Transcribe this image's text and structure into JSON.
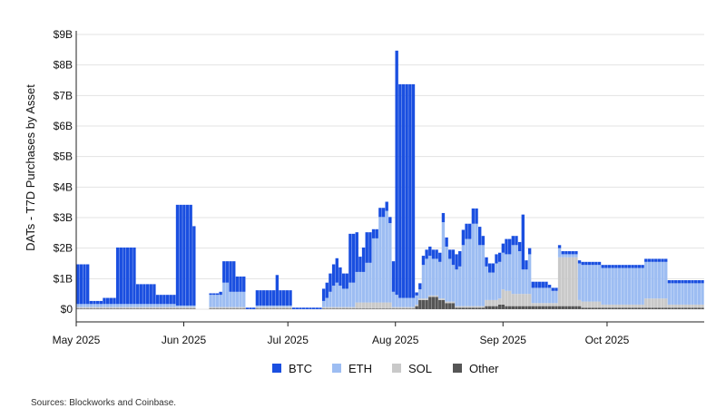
{
  "chart_data": {
    "type": "bar",
    "stacked": true,
    "ylabel": "DATs - T7D Purchases by Asset",
    "y_ticks": [
      "$0",
      "$1B",
      "$2B",
      "$3B",
      "$4B",
      "$5B",
      "$6B",
      "$7B",
      "$8B",
      "$9B"
    ],
    "ylim": [
      0,
      9
    ],
    "y_unit": "billion USD",
    "x_ticks": [
      "May 2025",
      "Jun 2025",
      "Jul 2025",
      "Aug 2025",
      "Sep 2025",
      "Oct 2025"
    ],
    "x_range": [
      "2025-05-01",
      "2025-10-29"
    ],
    "grid": true,
    "legend_position": "bottom",
    "colors": {
      "BTC": "#1a4fe0",
      "ETH": "#9dbdf2",
      "SOL": "#c9c9c9",
      "Other": "#555555"
    },
    "series": [
      {
        "name": "BTC",
        "values": [
          1.3,
          1.3,
          1.3,
          1.3,
          0.1,
          0.1,
          0.1,
          0.1,
          0.2,
          0.2,
          0.2,
          0.2,
          1.85,
          1.85,
          1.85,
          1.85,
          1.85,
          1.85,
          0.65,
          0.65,
          0.65,
          0.65,
          0.65,
          0.65,
          0.3,
          0.3,
          0.3,
          0.3,
          0.3,
          0.3,
          3.3,
          3.3,
          3.3,
          3.3,
          3.3,
          2.6,
          0.0,
          0.0,
          0.0,
          0.0,
          0.05,
          0.05,
          0.05,
          0.1,
          0.7,
          0.7,
          1.0,
          1.0,
          0.5,
          0.5,
          0.5,
          0.05,
          0.05,
          0.05,
          0.5,
          0.5,
          0.5,
          0.5,
          0.5,
          0.5,
          1.0,
          0.5,
          0.5,
          0.5,
          0.5,
          0.05,
          0.05,
          0.05,
          0.05,
          0.05,
          0.05,
          0.05,
          0.05,
          0.05,
          0.4,
          0.5,
          0.6,
          0.7,
          0.8,
          0.6,
          0.5,
          0.5,
          1.6,
          1.6,
          1.3,
          0.5,
          0.8,
          1.0,
          1.0,
          0.3,
          0.3,
          0.3,
          0.3,
          0.3,
          0.2,
          1.0,
          8.0,
          7.0,
          7.0,
          7.0,
          7.0,
          7.0,
          0.1,
          0.2,
          0.3,
          0.3,
          0.3,
          0.3,
          0.3,
          0.3,
          0.3,
          0.3,
          0.3,
          0.5,
          0.5,
          0.5,
          0.5,
          0.5,
          0.5,
          0.5,
          0.5,
          0.6,
          0.3,
          0.3,
          0.3,
          0.3,
          0.3,
          0.3,
          0.3,
          0.5,
          0.5,
          0.3,
          0.3,
          0.3,
          1.8,
          0.3,
          0.2,
          0.2,
          0.2,
          0.2,
          0.2,
          0.2,
          0.1,
          0.1,
          0.1,
          0.1,
          0.1,
          0.1,
          0.1,
          0.1,
          0.1,
          0.1,
          0.1,
          0.1,
          0.1,
          0.1,
          0.1,
          0.1,
          0.1,
          0.1,
          0.1,
          0.1,
          0.1,
          0.1,
          0.1,
          0.1,
          0.1,
          0.1,
          0.1,
          0.1,
          0.1,
          0.1,
          0.1,
          0.1,
          0.1,
          0.1,
          0.1,
          0.1,
          0.1,
          0.1,
          0.1,
          0.1,
          0.1,
          0.1,
          0.1,
          0.1,
          0.1,
          0.1,
          0.1
        ]
      },
      {
        "name": "ETH",
        "values": [
          0.1,
          0.1,
          0.1,
          0.1,
          0.1,
          0.1,
          0.1,
          0.1,
          0.1,
          0.1,
          0.1,
          0.1,
          0.1,
          0.1,
          0.1,
          0.1,
          0.1,
          0.1,
          0.1,
          0.1,
          0.1,
          0.1,
          0.1,
          0.1,
          0.1,
          0.1,
          0.1,
          0.1,
          0.1,
          0.1,
          0.05,
          0.05,
          0.05,
          0.05,
          0.05,
          0.05,
          0.0,
          0.0,
          0.0,
          0.0,
          0.4,
          0.4,
          0.4,
          0.4,
          0.8,
          0.8,
          0.5,
          0.5,
          0.5,
          0.5,
          0.5,
          0.0,
          0.0,
          0.0,
          0.05,
          0.05,
          0.05,
          0.05,
          0.05,
          0.05,
          0.05,
          0.05,
          0.05,
          0.05,
          0.05,
          0.0,
          0.0,
          0.0,
          0.0,
          0.0,
          0.0,
          0.0,
          0.0,
          0.0,
          0.2,
          0.3,
          0.5,
          0.7,
          0.8,
          0.7,
          0.6,
          0.6,
          0.8,
          0.8,
          1.0,
          1.0,
          1.0,
          1.3,
          1.3,
          2.1,
          2.1,
          2.8,
          2.8,
          3.0,
          2.6,
          0.5,
          0.4,
          0.3,
          0.3,
          0.3,
          0.3,
          0.3,
          0.3,
          0.3,
          1.1,
          1.3,
          1.3,
          1.2,
          1.2,
          1.2,
          2.5,
          1.8,
          1.4,
          1.2,
          1.2,
          1.3,
          2.0,
          2.2,
          2.2,
          2.7,
          2.7,
          2.0,
          2.0,
          1.1,
          0.9,
          0.9,
          1.2,
          1.2,
          1.2,
          1.2,
          1.2,
          1.6,
          1.6,
          1.4,
          0.8,
          0.8,
          1.3,
          0.5,
          0.5,
          0.5,
          0.5,
          0.5,
          0.5,
          0.4,
          0.4,
          0.3,
          0.1,
          0.1,
          0.1,
          0.1,
          0.1,
          1.2,
          1.2,
          1.2,
          1.2,
          1.2,
          1.2,
          1.2,
          1.2,
          1.2,
          1.2,
          1.2,
          1.2,
          1.2,
          1.2,
          1.2,
          1.2,
          1.2,
          1.2,
          1.2,
          1.2,
          1.2,
          1.2,
          1.2,
          1.2,
          1.2,
          1.2,
          1.2,
          0.7,
          0.7,
          0.7,
          0.7,
          0.7,
          0.7,
          0.7,
          0.7,
          0.7,
          0.7,
          0.7,
          0.7,
          0.7,
          0.7,
          0.7
        ]
      },
      {
        "name": "SOL",
        "values": [
          0.05,
          0.05,
          0.05,
          0.05,
          0.05,
          0.05,
          0.05,
          0.05,
          0.05,
          0.05,
          0.05,
          0.05,
          0.05,
          0.05,
          0.05,
          0.05,
          0.05,
          0.05,
          0.05,
          0.05,
          0.05,
          0.05,
          0.05,
          0.05,
          0.05,
          0.05,
          0.05,
          0.05,
          0.05,
          0.05,
          0.05,
          0.05,
          0.05,
          0.05,
          0.05,
          0.05,
          0.0,
          0.0,
          0.0,
          0.0,
          0.05,
          0.05,
          0.05,
          0.05,
          0.05,
          0.05,
          0.05,
          0.05,
          0.05,
          0.05,
          0.05,
          0.0,
          0.0,
          0.0,
          0.05,
          0.05,
          0.05,
          0.05,
          0.05,
          0.05,
          0.05,
          0.05,
          0.05,
          0.05,
          0.05,
          0.0,
          0.0,
          0.0,
          0.0,
          0.0,
          0.0,
          0.0,
          0.0,
          0.0,
          0.05,
          0.05,
          0.05,
          0.05,
          0.05,
          0.05,
          0.05,
          0.05,
          0.05,
          0.05,
          0.2,
          0.2,
          0.2,
          0.2,
          0.2,
          0.2,
          0.2,
          0.2,
          0.2,
          0.2,
          0.2,
          0.05,
          0.05,
          0.05,
          0.05,
          0.05,
          0.05,
          0.05,
          0.05,
          0.05,
          0.05,
          0.05,
          0.05,
          0.05,
          0.05,
          0.05,
          0.05,
          0.05,
          0.05,
          0.05,
          0.05,
          0.05,
          0.05,
          0.05,
          0.05,
          0.05,
          0.05,
          0.05,
          0.05,
          0.2,
          0.2,
          0.2,
          0.2,
          0.2,
          0.5,
          0.5,
          0.5,
          0.4,
          0.4,
          0.4,
          0.4,
          0.4,
          0.4,
          0.1,
          0.1,
          0.1,
          0.1,
          0.1,
          0.1,
          0.1,
          0.1,
          1.6,
          1.6,
          1.6,
          1.6,
          1.6,
          1.6,
          0.2,
          0.2,
          0.2,
          0.2,
          0.2,
          0.2,
          0.2,
          0.1,
          0.1,
          0.1,
          0.1,
          0.1,
          0.1,
          0.1,
          0.1,
          0.1,
          0.1,
          0.1,
          0.1,
          0.1,
          0.3,
          0.3,
          0.3,
          0.3,
          0.3,
          0.3,
          0.3,
          0.1,
          0.1,
          0.1,
          0.1,
          0.1,
          0.1,
          0.1,
          0.1,
          0.1,
          0.1,
          0.1,
          0.1,
          0.1,
          0.1,
          0.1,
          0.1
        ]
      },
      {
        "name": "Other",
        "values": [
          0.02,
          0.02,
          0.02,
          0.02,
          0.02,
          0.02,
          0.02,
          0.02,
          0.02,
          0.02,
          0.02,
          0.02,
          0.02,
          0.02,
          0.02,
          0.02,
          0.02,
          0.02,
          0.02,
          0.02,
          0.02,
          0.02,
          0.02,
          0.02,
          0.02,
          0.02,
          0.02,
          0.02,
          0.02,
          0.02,
          0.02,
          0.02,
          0.02,
          0.02,
          0.02,
          0.02,
          0.0,
          0.0,
          0.0,
          0.0,
          0.02,
          0.02,
          0.02,
          0.02,
          0.02,
          0.02,
          0.02,
          0.02,
          0.02,
          0.02,
          0.02,
          0.0,
          0.0,
          0.0,
          0.02,
          0.02,
          0.02,
          0.02,
          0.02,
          0.02,
          0.02,
          0.02,
          0.02,
          0.02,
          0.02,
          0.0,
          0.0,
          0.0,
          0.0,
          0.0,
          0.0,
          0.0,
          0.0,
          0.0,
          0.02,
          0.02,
          0.02,
          0.02,
          0.02,
          0.02,
          0.02,
          0.02,
          0.02,
          0.02,
          0.02,
          0.02,
          0.02,
          0.02,
          0.02,
          0.02,
          0.02,
          0.02,
          0.02,
          0.02,
          0.02,
          0.02,
          0.02,
          0.02,
          0.02,
          0.02,
          0.02,
          0.02,
          0.1,
          0.3,
          0.3,
          0.3,
          0.4,
          0.4,
          0.4,
          0.3,
          0.3,
          0.2,
          0.2,
          0.2,
          0.05,
          0.05,
          0.05,
          0.05,
          0.05,
          0.05,
          0.05,
          0.05,
          0.05,
          0.1,
          0.1,
          0.1,
          0.1,
          0.15,
          0.15,
          0.1,
          0.1,
          0.1,
          0.1,
          0.1,
          0.1,
          0.1,
          0.1,
          0.1,
          0.1,
          0.1,
          0.1,
          0.1,
          0.1,
          0.1,
          0.1,
          0.1,
          0.1,
          0.1,
          0.1,
          0.1,
          0.1,
          0.1,
          0.05,
          0.05,
          0.05,
          0.05,
          0.05,
          0.05,
          0.05,
          0.05,
          0.05,
          0.05,
          0.05,
          0.05,
          0.05,
          0.05,
          0.05,
          0.05,
          0.05,
          0.05,
          0.05,
          0.05,
          0.05,
          0.05,
          0.05,
          0.05,
          0.05,
          0.05,
          0.05,
          0.05,
          0.05,
          0.05,
          0.05,
          0.05,
          0.05,
          0.05,
          0.05,
          0.05,
          0.05,
          0.05,
          0.05,
          0.05,
          0.05,
          0.05,
          0.05
        ]
      }
    ]
  },
  "legend": [
    {
      "label": "BTC",
      "color": "#1a4fe0"
    },
    {
      "label": "ETH",
      "color": "#9dbdf2"
    },
    {
      "label": "SOL",
      "color": "#c9c9c9"
    },
    {
      "label": "Other",
      "color": "#555555"
    }
  ],
  "source_note": "Sources: Blockworks and Coinbase."
}
